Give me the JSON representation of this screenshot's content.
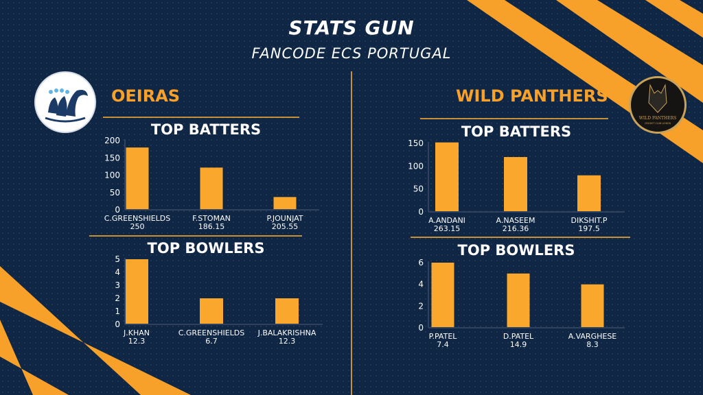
{
  "header": {
    "title": "STATS GUN",
    "subtitle": "FANCODE ECS PORTUGAL"
  },
  "teams": {
    "left": {
      "name": "OEIRAS"
    },
    "right": {
      "name": "WILD PANTHERS",
      "logo_text": "WILD PANTHERS",
      "logo_subtext": "CRICKET CLUB LISBON"
    }
  },
  "colors": {
    "background": "#0f2644",
    "accent": "#f7a12a",
    "bar": "#f9a82d"
  },
  "chart_data": [
    {
      "type": "bar",
      "title": "TOP BATTERS",
      "team": "OEIRAS",
      "categories": [
        "C.GREENSHIELDS",
        "F.STOMAN",
        "P.JOUNJAT"
      ],
      "values": [
        180,
        122,
        37
      ],
      "sublabels": [
        "250",
        "186.15",
        "205.55"
      ],
      "yticks": [
        "0",
        "50",
        "100",
        "150",
        "200"
      ],
      "ylim": [
        0,
        200
      ]
    },
    {
      "type": "bar",
      "title": "TOP BOWLERS",
      "team": "OEIRAS",
      "categories": [
        "J.KHAN",
        "C.GREENSHIELDS",
        "J.BALAKRISHNA"
      ],
      "values": [
        5,
        2,
        2
      ],
      "sublabels": [
        "12.3",
        "6.7",
        "12.3"
      ],
      "yticks": [
        "0",
        "1",
        "2",
        "3",
        "4",
        "5"
      ],
      "ylim": [
        0,
        5
      ]
    },
    {
      "type": "bar",
      "title": "TOP BATTERS",
      "team": "WILD PANTHERS",
      "categories": [
        "A.ANDANI",
        "A.NASEEM",
        "DIKSHIT.P"
      ],
      "values": [
        152,
        120,
        80
      ],
      "sublabels": [
        "263.15",
        "216.36",
        "197.5"
      ],
      "yticks": [
        "0",
        "50",
        "100",
        "150"
      ],
      "ylim": [
        0,
        150
      ]
    },
    {
      "type": "bar",
      "title": "TOP BOWLERS",
      "team": "WILD PANTHERS",
      "categories": [
        "P.PATEL",
        "D.PATEL",
        "A.VARGHESE"
      ],
      "values": [
        6,
        5,
        4
      ],
      "sublabels": [
        "7.4",
        "14.9",
        "8.3"
      ],
      "yticks": [
        "0",
        "2",
        "4",
        "6"
      ],
      "ylim": [
        0,
        6
      ]
    }
  ]
}
